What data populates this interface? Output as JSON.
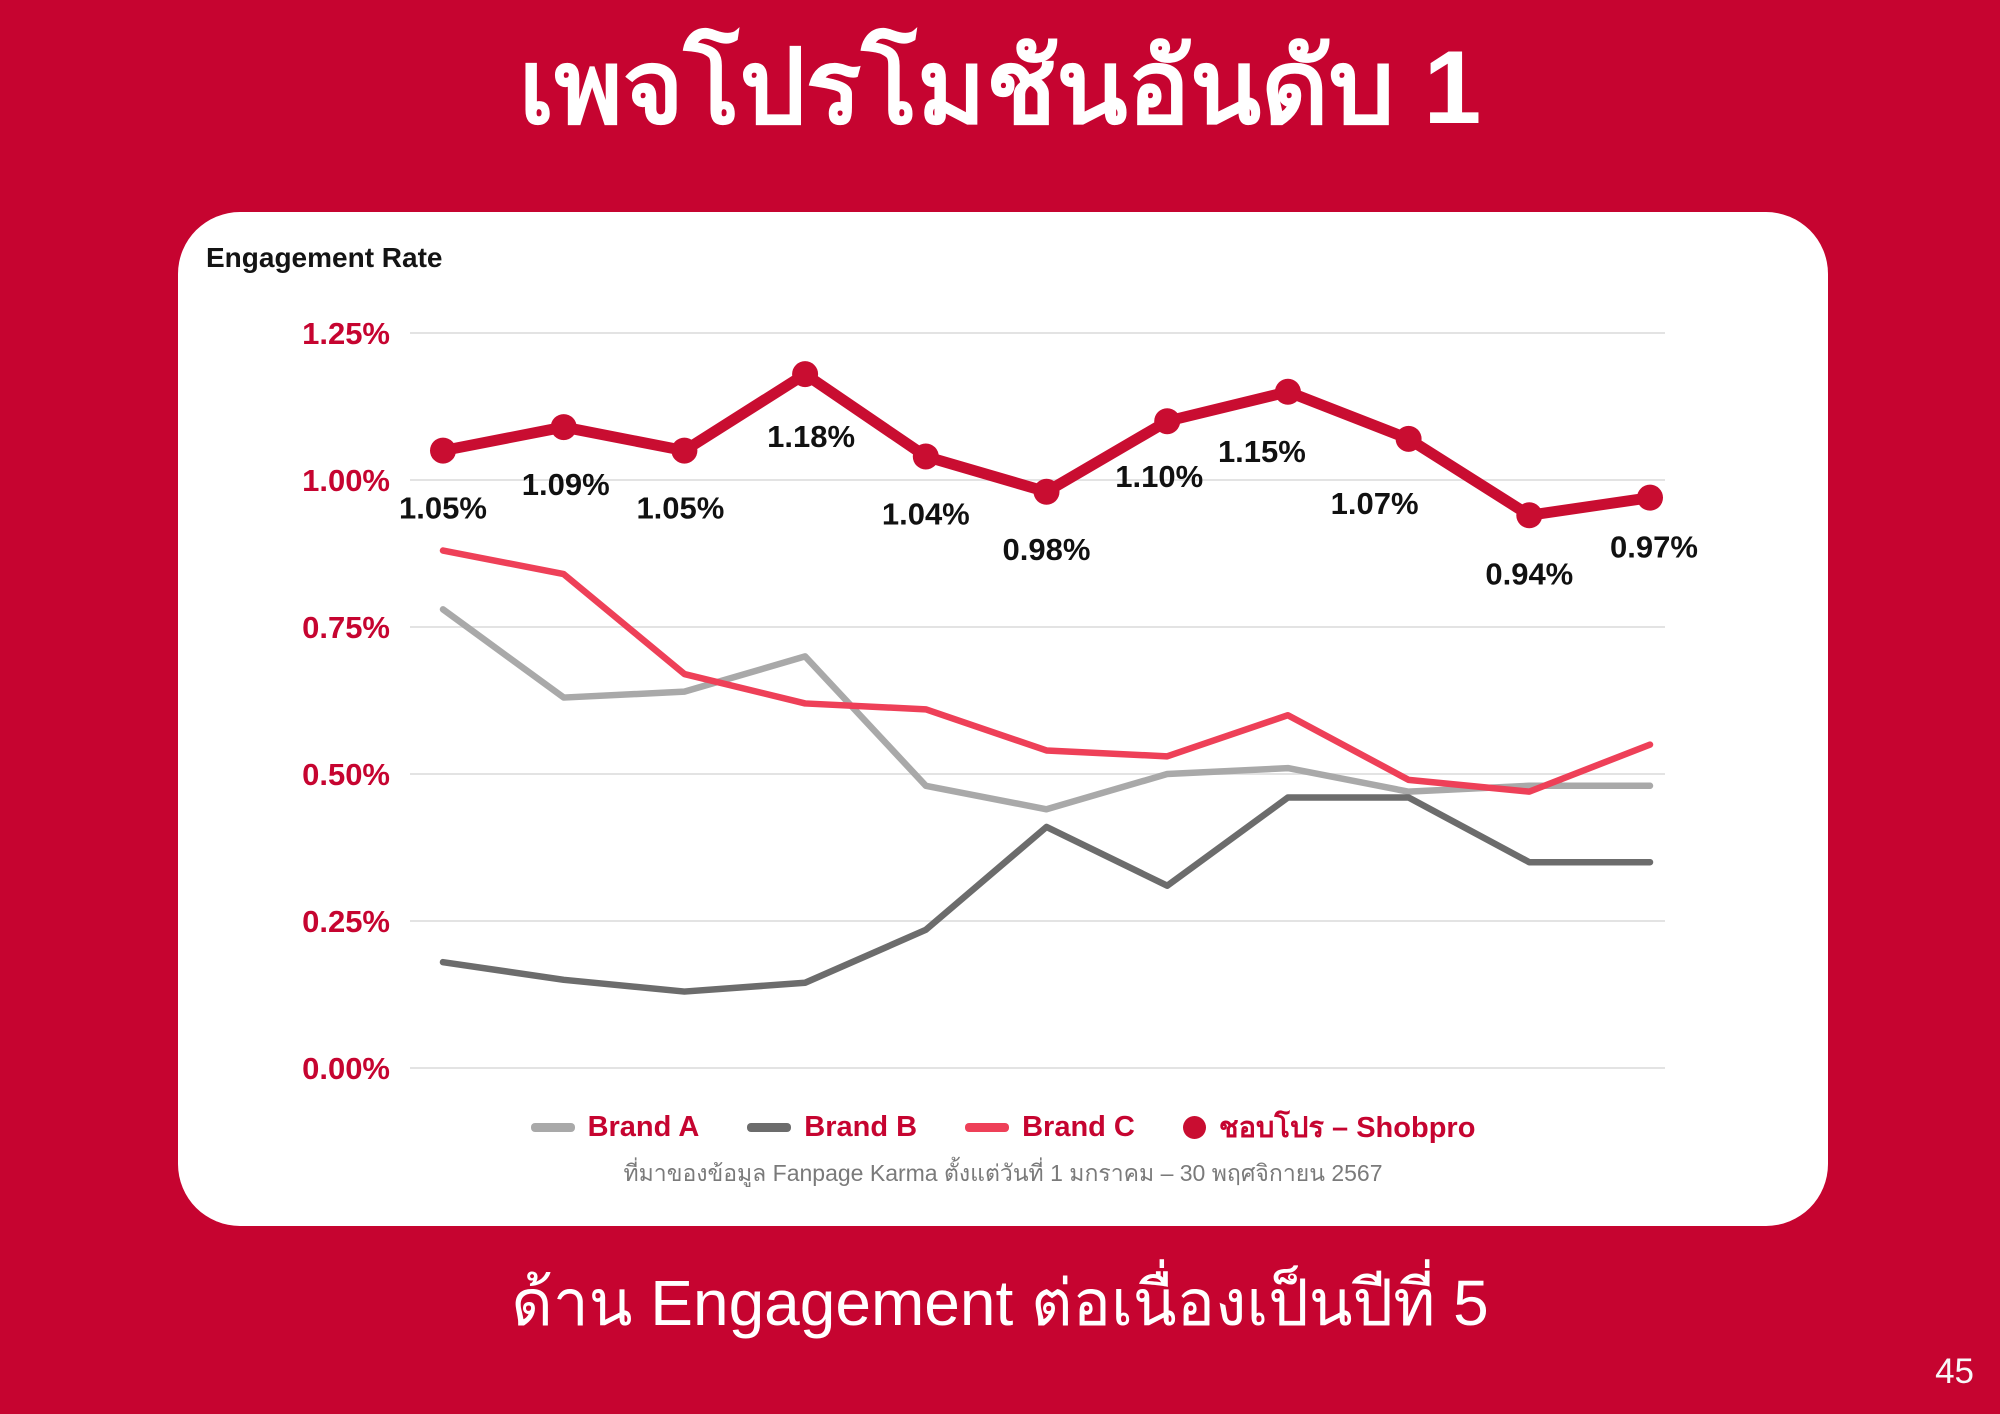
{
  "page": {
    "title": "เพจโปรโมชันอันดับ 1",
    "subtitle": "ด้าน Engagement ต่อเนื่องเป็นปีที่ 5",
    "page_number": "45",
    "background_color": "#C60430"
  },
  "card": {
    "chart_title": "Engagement Rate",
    "source_note": "ที่มาของข้อมูล Fanpage Karma ตั้งแต่วันที่ 1 มกราคม – 30 พฤศจิกายน 2567"
  },
  "legend": {
    "items": [
      {
        "label": "Brand A",
        "marker": "dash",
        "color": "#A9A9A9"
      },
      {
        "label": "Brand B",
        "marker": "dash",
        "color": "#6C6C6C"
      },
      {
        "label": "Brand C",
        "marker": "dash",
        "color": "#EE4058"
      },
      {
        "label": "ชอบโปร – Shobpro",
        "marker": "dot",
        "color": "#C90D31"
      }
    ],
    "text_color": "#C60430"
  },
  "chart_data": {
    "type": "line",
    "title": "Engagement Rate",
    "x_count": 11,
    "x_labels_shown": false,
    "grid": true,
    "legend_position": "bottom",
    "y_axis": {
      "ticks": [
        "1.25%",
        "1.00%",
        "0.75%",
        "0.50%",
        "0.25%",
        "0.00%"
      ],
      "tick_values": [
        1.25,
        1.0,
        0.75,
        0.5,
        0.25,
        0.0
      ],
      "min": 0,
      "max": 1.25,
      "unit": "%",
      "tick_color": "#C60430"
    },
    "series": [
      {
        "name": "Brand A",
        "color": "#A9A9A9",
        "values": [
          0.78,
          0.63,
          0.64,
          0.7,
          0.48,
          0.44,
          0.5,
          0.51,
          0.47,
          0.48,
          0.48
        ],
        "labels_shown": false,
        "point_markers": false
      },
      {
        "name": "Brand B",
        "color": "#6C6C6C",
        "values": [
          0.18,
          0.15,
          0.13,
          0.145,
          0.235,
          0.41,
          0.31,
          0.46,
          0.46,
          0.35,
          0.35
        ],
        "labels_shown": false,
        "point_markers": false
      },
      {
        "name": "Brand C",
        "color": "#EE4058",
        "values": [
          0.88,
          0.84,
          0.67,
          0.62,
          0.61,
          0.54,
          0.53,
          0.6,
          0.49,
          0.47,
          0.55
        ],
        "labels_shown": false,
        "point_markers": false
      },
      {
        "name": "ชอบโปร – Shobpro",
        "color": "#C90D31",
        "values": [
          1.05,
          1.09,
          1.05,
          1.18,
          1.04,
          0.98,
          1.1,
          1.15,
          1.07,
          0.94,
          0.97
        ],
        "labels": [
          "1.05%",
          "1.09%",
          "1.05%",
          "1.18%",
          "1.04%",
          "0.98%",
          "1.10%",
          "1.15%",
          "1.07%",
          "0.94%",
          "0.97%"
        ],
        "labels_shown": true,
        "point_markers": true
      }
    ],
    "label_style": {
      "color": "#111111",
      "dx": [
        0,
        2,
        -4,
        6,
        0,
        0,
        -8,
        -26,
        -34,
        0,
        4
      ],
      "dy": [
        68,
        68,
        68,
        73,
        68,
        68,
        66,
        70,
        75,
        69,
        60
      ]
    }
  }
}
